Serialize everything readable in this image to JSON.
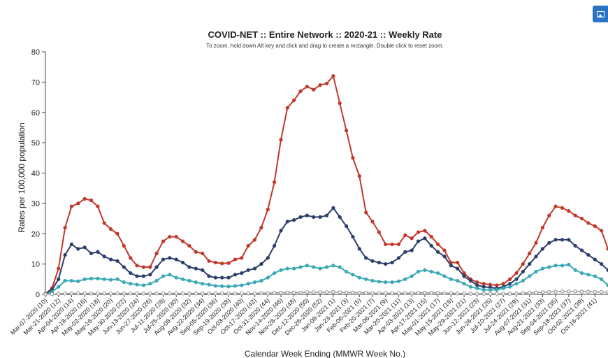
{
  "export_button": {
    "icon": "image-icon",
    "color": "#2a73c5"
  },
  "chart_data": {
    "type": "line",
    "title": "COVID-NET :: Entire Network :: 2020-21 :: Weekly Rate",
    "subtitle": "To zoom, hold down Alt key and click and drag to create a rectangle. Double click to reset zoom.",
    "xlabel": "Calendar Week Ending (MMWR Week No.)",
    "ylabel": "Rates per 100,000 population",
    "ylim": [
      0,
      80
    ],
    "yticks": [
      0,
      10,
      20,
      30,
      40,
      50,
      60,
      70,
      80
    ],
    "x_tick_labels": [
      "Mar-07-2020 (10)",
      "Mar-21-2020 (12)",
      "Apr-04-2020 (14)",
      "Apr-18-2020 (16)",
      "May-02-2020 (18)",
      "May-16-2020 (20)",
      "May-30-2020 (22)",
      "Jun-13-2020 (24)",
      "Jun-27-2020 (26)",
      "Jul-11-2020 (28)",
      "Jul-25-2020 (30)",
      "Aug-08-2020 (32)",
      "Aug-22-2020 (34)",
      "Sep-05-2020 (36)",
      "Sep-19-2020 (38)",
      "Oct-03-2020 (40)",
      "Oct-17-2020 (42)",
      "Oct-31-2020 (44)",
      "Nov-14-2020 (46)",
      "Nov-28-2020 (48)",
      "Dec-12-2020 (50)",
      "Dec-26-2020 (52)",
      "Jan-09-2021 (1)",
      "Jan-23-2021 (3)",
      "Feb-06-2021 (5)",
      "Feb-20-2021 (7)",
      "Mar-06-2021 (9)",
      "Mar-20-2021 (11)",
      "Apr-03-2021 (13)",
      "Apr-17-2021 (15)",
      "May-01-2021 (17)",
      "May-15-2021 (19)",
      "May-29-2021 (21)",
      "Jun-12-2021 (23)",
      "Jun-26-2021 (25)",
      "Jul-10-2021 (27)",
      "Jul-24-2021 (29)",
      "Aug-07-2021 (31)",
      "Aug-21-2021 (33)",
      "Sep-04-2021 (35)",
      "Sep-18-2021 (37)",
      "Oct-02-2021 (39)",
      "Oct-16-2021 (41)"
    ],
    "grid": false,
    "series": [
      {
        "color": "#c0392b",
        "values": [
          0.2,
          2,
          8.5,
          22,
          29,
          30,
          31.5,
          31,
          29,
          23.5,
          21.5,
          20,
          16,
          12,
          9.5,
          9,
          9,
          13.5,
          17.5,
          19,
          19,
          17.5,
          16,
          14,
          13.5,
          11,
          10.5,
          10.2,
          10.3,
          11.5,
          12,
          16,
          18,
          22,
          28,
          37,
          51,
          61.5,
          64,
          67,
          68.5,
          67.5,
          69,
          69.5,
          72,
          63,
          54,
          45,
          39,
          27,
          24,
          20.5,
          16.5,
          16.5,
          16.5,
          19.5,
          18.5,
          20.5,
          21,
          19,
          16.5,
          14.5,
          10.5,
          10.5,
          7,
          5,
          4,
          3.5,
          3.2,
          3,
          3.5,
          5,
          7,
          10,
          13.5,
          17,
          22,
          26,
          29,
          28.5,
          27.5,
          26,
          25,
          23.5,
          22.5,
          21,
          15
        ]
      },
      {
        "color": "#2c3e6b",
        "values": [
          0.1,
          1.5,
          5,
          13,
          16.5,
          15,
          15.5,
          13.5,
          14,
          12.5,
          11.5,
          11,
          9,
          7,
          6,
          6,
          6.5,
          9,
          11.5,
          12,
          11.5,
          10.5,
          9,
          8.5,
          8,
          6,
          5.5,
          5.5,
          5.5,
          6.5,
          7,
          8,
          8.5,
          10,
          12,
          16,
          21,
          24,
          24.5,
          25.5,
          26,
          25.5,
          25.5,
          26,
          28.5,
          25.5,
          22.5,
          19,
          15,
          12,
          11,
          10.5,
          10,
          10.5,
          12,
          14,
          14.5,
          17.5,
          18.5,
          16,
          14,
          12.5,
          9.5,
          8.5,
          6,
          4.5,
          3,
          2.5,
          2.3,
          2,
          2.5,
          3.5,
          5,
          7.5,
          10,
          12.5,
          15,
          17,
          18,
          18,
          18,
          16,
          14.5,
          13,
          11.5,
          10,
          8
        ]
      },
      {
        "color": "#3aa9b5",
        "values": [
          0.05,
          0.8,
          2.5,
          4.5,
          4.5,
          4.3,
          5,
          5.2,
          5.2,
          5,
          4.8,
          5,
          4,
          3.5,
          3.2,
          3,
          3.5,
          4.5,
          6,
          6.5,
          5.5,
          5,
          4.5,
          4,
          3.5,
          3.2,
          2.8,
          2.7,
          2.6,
          2.8,
          3,
          3.5,
          4,
          4.5,
          5.5,
          7,
          8,
          8.5,
          8.5,
          9,
          9.5,
          9,
          8.5,
          9,
          9.5,
          9,
          7.5,
          6.5,
          5.5,
          5,
          4.5,
          4.2,
          4,
          4,
          4.3,
          5,
          6,
          7.5,
          8,
          7.5,
          7,
          6,
          5,
          4.5,
          3.5,
          2.5,
          2,
          1.5,
          1.5,
          1.5,
          2,
          2.5,
          3.5,
          4.5,
          6,
          7.5,
          8.5,
          9,
          9.5,
          9.5,
          9.8,
          8,
          7,
          6.5,
          6,
          5,
          3
        ]
      },
      {
        "color": "#999999",
        "values": [
          0,
          0.1,
          0.2,
          0.3,
          0.3,
          0.3,
          0.3,
          0.3,
          0.3,
          0.3,
          0.3,
          0.3,
          0.3,
          0.3,
          0.3,
          0.3,
          0.3,
          0.3,
          0.3,
          0.3,
          0.3,
          0.3,
          0.3,
          0.3,
          0.3,
          0.3,
          0.3,
          0.3,
          0.3,
          0.3,
          0.3,
          0.3,
          0.3,
          0.4,
          0.4,
          0.5,
          0.5,
          0.6,
          0.6,
          0.6,
          0.7,
          0.7,
          0.7,
          0.7,
          0.8,
          0.7,
          0.6,
          0.6,
          0.5,
          0.5,
          0.4,
          0.4,
          0.4,
          0.4,
          0.4,
          0.4,
          0.4,
          0.5,
          0.5,
          0.5,
          0.5,
          0.4,
          0.4,
          0.3,
          0.3,
          0.2,
          0.2,
          0.2,
          0.2,
          0.2,
          0.2,
          0.2,
          0.3,
          0.4,
          0.5,
          0.6,
          0.7,
          0.8,
          0.9,
          1,
          1,
          1,
          0.9,
          0.9,
          0.8,
          0.8,
          0.7
        ]
      }
    ]
  }
}
